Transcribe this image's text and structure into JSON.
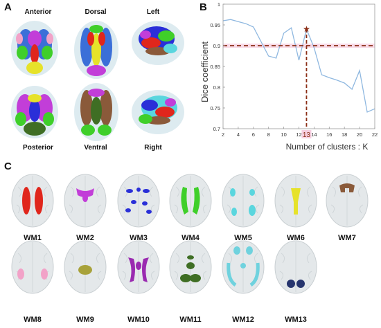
{
  "panels": {
    "A": {
      "letter": "A",
      "views": [
        "Anterior",
        "Dorsal",
        "Left",
        "Posterior",
        "Ventral",
        "Right"
      ]
    },
    "B": {
      "letter": "B"
    },
    "C": {
      "letter": "C",
      "tracts": [
        {
          "label": "WM1",
          "color": "#e0261c"
        },
        {
          "label": "WM2",
          "color": "#c23ed8"
        },
        {
          "label": "WM3",
          "color": "#2a2fd8"
        },
        {
          "label": "WM4",
          "color": "#3fcf2a"
        },
        {
          "label": "WM5",
          "color": "#5ad6de"
        },
        {
          "label": "WM6",
          "color": "#e6e22a"
        },
        {
          "label": "WM7",
          "color": "#8a5a3a"
        },
        {
          "label": "WM8",
          "color": "#f2a2c8"
        },
        {
          "label": "WM9",
          "color": "#a8a23a"
        },
        {
          "label": "WM10",
          "color": "#9a2ab0"
        },
        {
          "label": "WM11",
          "color": "#3f6e24"
        },
        {
          "label": "WM12",
          "color": "#6fd2de"
        },
        {
          "label": "WM13",
          "color": "#27356e"
        }
      ]
    }
  },
  "chart_data": {
    "type": "line",
    "xlabel": "Number of clusters : K",
    "ylabel": "Dice coefficient",
    "xlim": [
      2,
      22
    ],
    "ylim": [
      0.7,
      1.0
    ],
    "xticks": [
      2,
      4,
      6,
      8,
      10,
      12,
      14,
      16,
      18,
      20,
      22
    ],
    "yticks": [
      0.7,
      0.75,
      0.8,
      0.85,
      0.9,
      0.95,
      1
    ],
    "x": [
      2,
      3,
      4,
      5,
      6,
      7,
      8,
      9,
      10,
      11,
      12,
      13,
      14,
      15,
      16,
      17,
      18,
      19,
      20,
      21,
      22
    ],
    "y": [
      0.96,
      0.963,
      0.958,
      0.953,
      0.945,
      0.91,
      0.875,
      0.87,
      0.93,
      0.943,
      0.865,
      0.94,
      0.895,
      0.83,
      0.823,
      0.817,
      0.81,
      0.795,
      0.84,
      0.74,
      0.748
    ],
    "threshold": 0.9,
    "highlight_k": "13",
    "line_color": "#8fb8e0",
    "threshold_color": "#8b2e16",
    "band_color": "#f6cfe0",
    "grid": false
  }
}
